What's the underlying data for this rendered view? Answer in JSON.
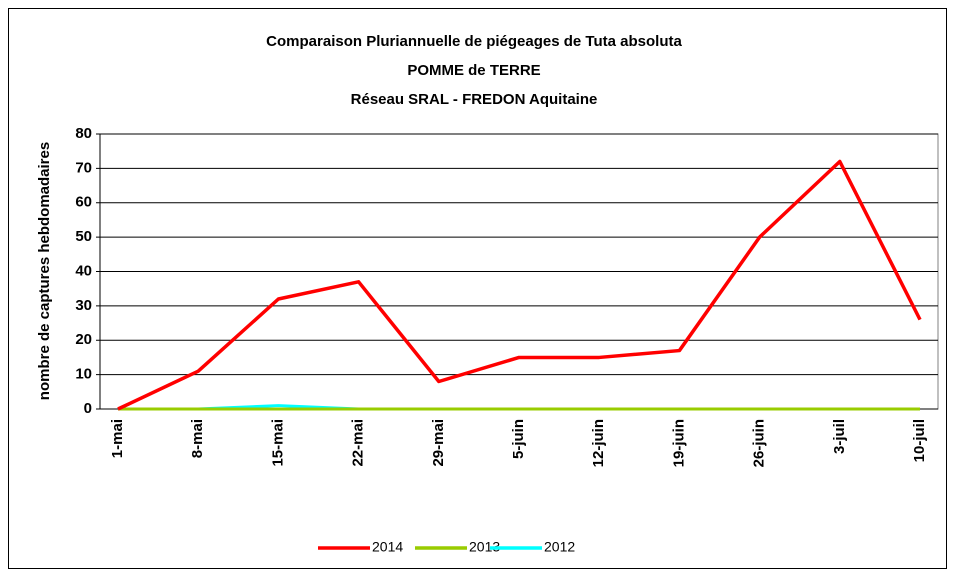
{
  "chart_data": {
    "type": "line",
    "title": [
      "Comparaison Pluriannuelle de piégeages de Tuta absoluta",
      "POMME de TERRE",
      "Réseau SRAL - FREDON Aquitaine"
    ],
    "y_label": "nombre de captures hebdomadaires",
    "categories": [
      "1-mai",
      "8-mai",
      "15-mai",
      "22-mai",
      "29-mai",
      "5-juin",
      "12-juin",
      "19-juin",
      "26-juin",
      "3-juil",
      "10-juil"
    ],
    "series": [
      {
        "name": "2014",
        "color": "#ff0000",
        "values": [
          0,
          11,
          32,
          37,
          8,
          15,
          15,
          17,
          50,
          72,
          26
        ]
      },
      {
        "name": "2013",
        "color": "#99cc00",
        "values": [
          0,
          0,
          0,
          0,
          0,
          0,
          0,
          0,
          0,
          0,
          0
        ]
      },
      {
        "name": "2012",
        "color": "#00ffff",
        "values": [
          0,
          0,
          1,
          0,
          0,
          0,
          0,
          0,
          0,
          0,
          0
        ]
      }
    ],
    "ylim": [
      0,
      80
    ],
    "yticks": [
      0,
      10,
      20,
      30,
      40,
      50,
      60,
      70,
      80
    ],
    "grid": true,
    "legend": "bottom"
  }
}
